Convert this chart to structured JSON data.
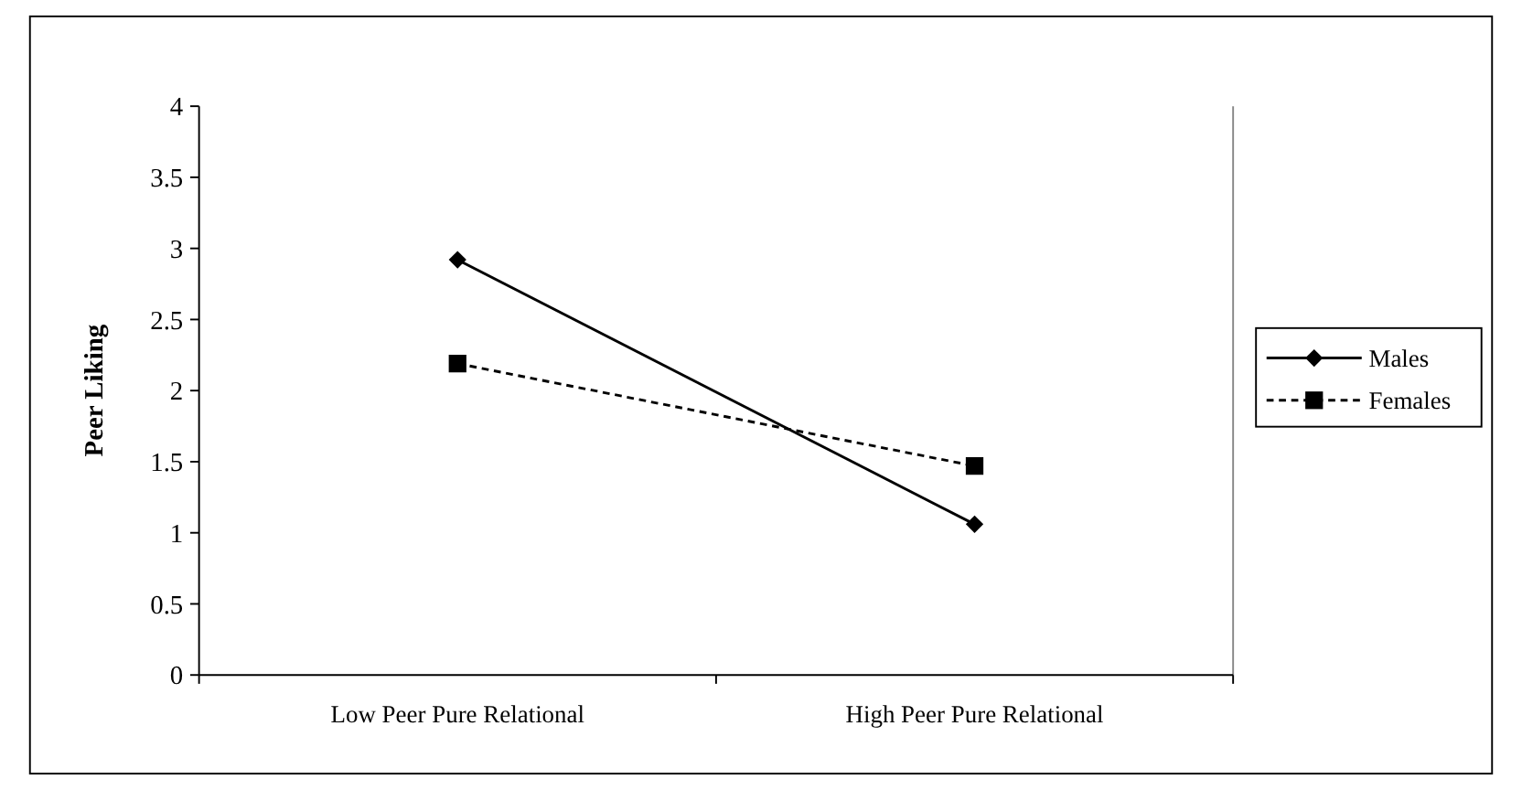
{
  "chart_data": {
    "type": "line",
    "ylabel": "Peer Liking",
    "categories": [
      "Low Peer Pure Relational",
      "High Peer Pure Relational"
    ],
    "series": [
      {
        "name": "Males",
        "color": "#000000",
        "values": [
          2.92,
          1.06
        ],
        "marker": "diamond",
        "line_style": "solid"
      },
      {
        "name": "Females",
        "color": "#000000",
        "values": [
          2.19,
          1.47
        ],
        "marker": "square",
        "line_style": "dashed"
      }
    ],
    "ylim": [
      0,
      4
    ],
    "yticks": [
      0,
      0.5,
      1,
      1.5,
      2,
      2.5,
      3,
      3.5,
      4
    ],
    "grid": false,
    "legend": "right"
  }
}
